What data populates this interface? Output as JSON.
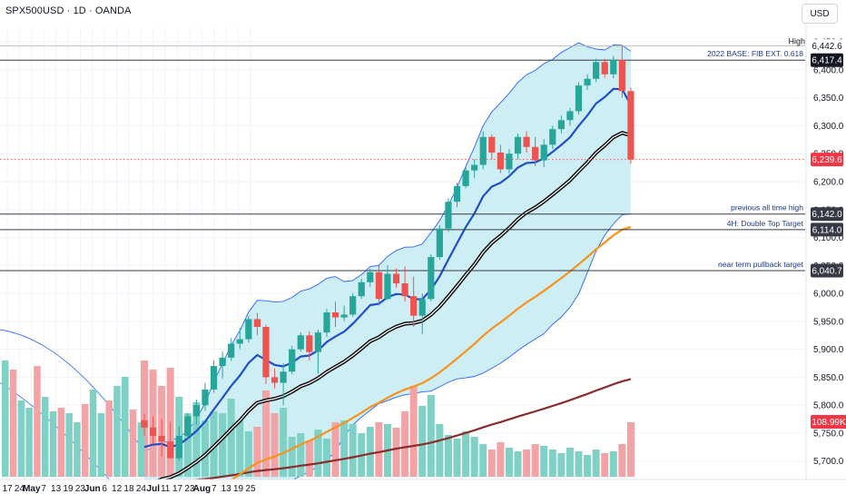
{
  "header": {
    "title": "SPX500USD · 1D · OANDA",
    "currency": "USD"
  },
  "colors": {
    "up": "#26a69a",
    "down": "#ef5350",
    "band_fill": "#c5ebf3",
    "band_line": "#2962ff",
    "ema_short": "#1e4fc8",
    "ema_mid": "#111111",
    "ema_orange": "#f7931a",
    "ema_long": "#8b2c2c",
    "vol_up": "#7ed1c4",
    "vol_down": "#f3a3a5"
  },
  "price_axis": {
    "ticks": [
      "6,450.0",
      "6,400.0",
      "6,350.0",
      "6,300.0",
      "6,250.0",
      "6,200.0",
      "6,150.0",
      "6,100.0",
      "6,050.0",
      "6,000.0",
      "5,950.0",
      "5,900.0",
      "5,850.0",
      "5,800.0",
      "5,750.0",
      "5,700.0"
    ]
  },
  "time_axis": {
    "labels": [
      "17",
      "24",
      "May",
      "7",
      "13",
      "19",
      "23",
      "Jun",
      "6",
      "12",
      "18",
      "24",
      "Jul",
      "11",
      "17",
      "23",
      "Aug",
      "7",
      "13",
      "19",
      "25"
    ]
  },
  "horizontal_lines": [
    {
      "label": "2022 BASE: FIB EXT. 0.618",
      "price": 6417.4,
      "tag": "6,417.4"
    },
    {
      "label": "previous all time high",
      "price": 6142.0,
      "tag": "6,142.0"
    },
    {
      "label": "4H: Double Top Target",
      "price": 6114.0,
      "tag": "6,114.0"
    },
    {
      "label": "near term pullback target",
      "price": 6040.7,
      "tag": "6,040.7"
    }
  ],
  "high_label": {
    "text": "High",
    "tag": "6,442.6"
  },
  "current_price": {
    "tag": "6,239.6",
    "price": 6239.6
  },
  "volume_tag": "108.99K",
  "chart_data": {
    "type": "candlestick",
    "symbol": "SPX500USD",
    "interval": "1D",
    "source": "OANDA",
    "ylim": [
      5680,
      6460
    ],
    "candles": [
      {
        "o": 5773,
        "h": 5784,
        "l": 5745,
        "c": 5760
      },
      {
        "o": 5760,
        "h": 5780,
        "l": 5730,
        "c": 5745
      },
      {
        "o": 5745,
        "h": 5775,
        "l": 5708,
        "c": 5735
      },
      {
        "o": 5735,
        "h": 5770,
        "l": 5705,
        "c": 5705
      },
      {
        "o": 5705,
        "h": 5762,
        "l": 5700,
        "c": 5745
      },
      {
        "o": 5745,
        "h": 5785,
        "l": 5740,
        "c": 5780
      },
      {
        "o": 5780,
        "h": 5810,
        "l": 5765,
        "c": 5800
      },
      {
        "o": 5800,
        "h": 5840,
        "l": 5790,
        "c": 5828
      },
      {
        "o": 5828,
        "h": 5880,
        "l": 5822,
        "c": 5870
      },
      {
        "o": 5870,
        "h": 5896,
        "l": 5848,
        "c": 5885
      },
      {
        "o": 5885,
        "h": 5920,
        "l": 5879,
        "c": 5910
      },
      {
        "o": 5910,
        "h": 5938,
        "l": 5900,
        "c": 5918
      },
      {
        "o": 5918,
        "h": 5960,
        "l": 5912,
        "c": 5954
      },
      {
        "o": 5954,
        "h": 5965,
        "l": 5925,
        "c": 5940
      },
      {
        "o": 5940,
        "h": 5944,
        "l": 5838,
        "c": 5850
      },
      {
        "o": 5850,
        "h": 5866,
        "l": 5830,
        "c": 5840
      },
      {
        "o": 5840,
        "h": 5875,
        "l": 5800,
        "c": 5860
      },
      {
        "o": 5860,
        "h": 5906,
        "l": 5855,
        "c": 5900
      },
      {
        "o": 5900,
        "h": 5930,
        "l": 5896,
        "c": 5925
      },
      {
        "o": 5925,
        "h": 5932,
        "l": 5880,
        "c": 5895
      },
      {
        "o": 5895,
        "h": 5935,
        "l": 5856,
        "c": 5930
      },
      {
        "o": 5930,
        "h": 5972,
        "l": 5922,
        "c": 5966
      },
      {
        "o": 5966,
        "h": 5985,
        "l": 5940,
        "c": 5957
      },
      {
        "o": 5957,
        "h": 5978,
        "l": 5950,
        "c": 5962
      },
      {
        "o": 5962,
        "h": 6000,
        "l": 5958,
        "c": 5995
      },
      {
        "o": 5995,
        "h": 6026,
        "l": 5990,
        "c": 6020
      },
      {
        "o": 6020,
        "h": 6044,
        "l": 6012,
        "c": 6038
      },
      {
        "o": 6038,
        "h": 6052,
        "l": 5978,
        "c": 5990
      },
      {
        "o": 5990,
        "h": 6050,
        "l": 5988,
        "c": 6035
      },
      {
        "o": 6035,
        "h": 6045,
        "l": 6010,
        "c": 6018
      },
      {
        "o": 6018,
        "h": 6048,
        "l": 5985,
        "c": 5995
      },
      {
        "o": 5995,
        "h": 6030,
        "l": 5940,
        "c": 5960
      },
      {
        "o": 5960,
        "h": 6000,
        "l": 5927,
        "c": 5990
      },
      {
        "o": 5990,
        "h": 6070,
        "l": 5986,
        "c": 6065
      },
      {
        "o": 6065,
        "h": 6122,
        "l": 6060,
        "c": 6116
      },
      {
        "o": 6116,
        "h": 6170,
        "l": 6110,
        "c": 6164
      },
      {
        "o": 6164,
        "h": 6198,
        "l": 6154,
        "c": 6192
      },
      {
        "o": 6192,
        "h": 6225,
        "l": 6188,
        "c": 6220
      },
      {
        "o": 6220,
        "h": 6240,
        "l": 6206,
        "c": 6230
      },
      {
        "o": 6230,
        "h": 6290,
        "l": 6222,
        "c": 6280
      },
      {
        "o": 6280,
        "h": 6284,
        "l": 6240,
        "c": 6252
      },
      {
        "o": 6252,
        "h": 6266,
        "l": 6215,
        "c": 6222
      },
      {
        "o": 6222,
        "h": 6258,
        "l": 6214,
        "c": 6250
      },
      {
        "o": 6250,
        "h": 6286,
        "l": 6240,
        "c": 6280
      },
      {
        "o": 6280,
        "h": 6290,
        "l": 6252,
        "c": 6262
      },
      {
        "o": 6262,
        "h": 6280,
        "l": 6228,
        "c": 6238
      },
      {
        "o": 6238,
        "h": 6276,
        "l": 6226,
        "c": 6266
      },
      {
        "o": 6266,
        "h": 6300,
        "l": 6258,
        "c": 6294
      },
      {
        "o": 6294,
        "h": 6318,
        "l": 6286,
        "c": 6310
      },
      {
        "o": 6310,
        "h": 6332,
        "l": 6300,
        "c": 6326
      },
      {
        "o": 6326,
        "h": 6378,
        "l": 6320,
        "c": 6372
      },
      {
        "o": 6372,
        "h": 6392,
        "l": 6364,
        "c": 6384
      },
      {
        "o": 6384,
        "h": 6420,
        "l": 6378,
        "c": 6414
      },
      {
        "o": 6414,
        "h": 6420,
        "l": 6386,
        "c": 6392
      },
      {
        "o": 6392,
        "h": 6425,
        "l": 6385,
        "c": 6418
      },
      {
        "o": 6418,
        "h": 6442.6,
        "l": 6350,
        "c": 6362
      },
      {
        "o": 6362,
        "h": 6368,
        "l": 6232,
        "c": 6239.6
      }
    ],
    "volume_color_note": "volume bars colored by candle direction"
  }
}
